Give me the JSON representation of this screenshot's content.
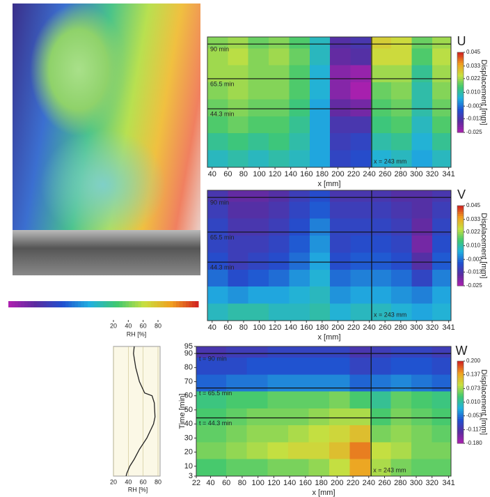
{
  "chart_data": [
    {
      "type": "heatmap",
      "title": "U",
      "xlabel": "x [mm]",
      "xlim": [
        34,
        344
      ],
      "xticks": [
        40,
        60,
        80,
        100,
        120,
        140,
        160,
        180,
        200,
        220,
        240,
        260,
        280,
        300,
        320,
        341
      ],
      "ylim": [
        3,
        95
      ],
      "xbins": [
        34,
        60,
        86,
        112,
        138,
        164,
        190,
        216,
        242,
        268,
        294,
        320,
        344
      ],
      "ybins": [
        3,
        15,
        27,
        39,
        51,
        63,
        75,
        87,
        95
      ],
      "z": [
        [
          0.008,
          0.01,
          0.008,
          0.01,
          0.008,
          0.004,
          -0.008,
          -0.006,
          0.006,
          0.008,
          0.004,
          0.008
        ],
        [
          0.012,
          0.014,
          0.012,
          0.014,
          0.01,
          0.004,
          -0.01,
          -0.008,
          0.01,
          0.012,
          0.006,
          0.012
        ],
        [
          0.016,
          0.018,
          0.016,
          0.016,
          0.012,
          0.004,
          -0.012,
          -0.012,
          0.014,
          0.016,
          0.008,
          0.016
        ],
        [
          0.018,
          0.02,
          0.018,
          0.018,
          0.014,
          0.004,
          -0.016,
          -0.018,
          0.016,
          0.018,
          0.01,
          0.018
        ],
        [
          0.02,
          0.022,
          0.02,
          0.02,
          0.016,
          0.006,
          -0.02,
          -0.024,
          0.018,
          0.02,
          0.01,
          0.02
        ],
        [
          0.022,
          0.022,
          0.02,
          0.02,
          0.016,
          0.006,
          -0.02,
          -0.022,
          0.022,
          0.022,
          0.012,
          0.022
        ],
        [
          0.022,
          0.024,
          0.02,
          0.022,
          0.018,
          0.008,
          -0.016,
          -0.014,
          0.026,
          0.026,
          0.016,
          0.024
        ],
        [
          0.02,
          0.022,
          0.018,
          0.02,
          0.016,
          0.008,
          -0.014,
          -0.012,
          0.028,
          0.026,
          0.018,
          0.022
        ]
      ],
      "clim": [
        -0.025,
        0.045
      ],
      "cticks": [
        0.045,
        0.033,
        0.022,
        {
          "value": 0.01,
          "label": "0.010"
        },
        -0.002,
        -0.013,
        -0.025
      ],
      "clabel": "Displacement [mm]",
      "colormap": [
        "#b01fb0",
        "#5a2ca0",
        "#2050d0",
        "#20b0e0",
        "#40c870",
        "#c8e040",
        "#f0a020",
        "#d02020"
      ],
      "hlines": [
        90,
        65.5,
        44.3
      ],
      "hline_labels": [
        "90 min",
        "65.5 min",
        "44.3 min"
      ],
      "vline": 243,
      "vline_label": "x = 243 mm"
    },
    {
      "type": "heatmap",
      "title": "V",
      "xlabel": "x [mm]",
      "xlim": [
        34,
        344
      ],
      "xticks": [
        40,
        60,
        80,
        100,
        120,
        140,
        160,
        180,
        200,
        220,
        240,
        260,
        280,
        300,
        320,
        341
      ],
      "ylim": [
        3,
        95
      ],
      "xbins": [
        34,
        60,
        86,
        112,
        138,
        164,
        190,
        216,
        242,
        268,
        294,
        320,
        344
      ],
      "ybins": [
        3,
        15,
        27,
        39,
        51,
        63,
        75,
        87,
        95
      ],
      "z": [
        [
          0.008,
          0.01,
          0.01,
          0.008,
          0.008,
          0.01,
          0.006,
          0.008,
          0.008,
          0.006,
          0.004,
          0.006
        ],
        [
          0.004,
          0.002,
          0.004,
          0.004,
          0.006,
          0.008,
          0.002,
          0.004,
          0.004,
          0.002,
          0.0,
          0.004
        ],
        [
          -0.002,
          -0.006,
          -0.004,
          -0.002,
          0.002,
          0.006,
          -0.002,
          0.0,
          0.0,
          -0.002,
          -0.008,
          0.0
        ],
        [
          -0.006,
          -0.01,
          -0.008,
          -0.006,
          -0.002,
          0.004,
          -0.006,
          -0.004,
          -0.004,
          -0.006,
          -0.014,
          -0.004
        ],
        [
          -0.008,
          -0.01,
          -0.01,
          -0.008,
          -0.004,
          0.002,
          -0.008,
          -0.006,
          -0.006,
          -0.008,
          -0.018,
          -0.006
        ],
        [
          -0.008,
          -0.012,
          -0.012,
          -0.01,
          -0.006,
          0.0,
          -0.008,
          -0.008,
          -0.008,
          -0.01,
          -0.016,
          -0.008
        ],
        [
          -0.01,
          -0.014,
          -0.014,
          -0.012,
          -0.008,
          -0.004,
          -0.01,
          -0.01,
          -0.01,
          -0.012,
          -0.014,
          -0.01
        ],
        [
          -0.012,
          -0.016,
          -0.016,
          -0.014,
          -0.01,
          -0.006,
          -0.012,
          -0.012,
          -0.012,
          -0.014,
          -0.014,
          -0.012
        ]
      ],
      "clim": [
        -0.025,
        0.045
      ],
      "cticks": [
        0.045,
        0.033,
        0.022,
        {
          "value": 0.01,
          "label": "0.010"
        },
        -0.002,
        -0.013,
        -0.025
      ],
      "clabel": "Displacement [mm]",
      "colormap": [
        "#b01fb0",
        "#5a2ca0",
        "#2050d0",
        "#20b0e0",
        "#40c870",
        "#c8e040",
        "#f0a020",
        "#d02020"
      ],
      "hlines": [
        90,
        65.5,
        44.3
      ],
      "hline_labels": [
        "90 min",
        "65.5 min",
        "44.3 min"
      ],
      "vline": 243,
      "vline_label": "x = 243 mm"
    },
    {
      "type": "heatmap",
      "title": "W",
      "xlabel": "x [mm]",
      "ylabel": "Time [min]",
      "xlim": [
        22,
        344
      ],
      "xticks": [
        22,
        40,
        60,
        80,
        100,
        120,
        140,
        160,
        180,
        200,
        220,
        240,
        260,
        280,
        300,
        320,
        341
      ],
      "ylim": [
        3,
        95
      ],
      "yticks": [
        3,
        10,
        20,
        30,
        40,
        50,
        60,
        70,
        80,
        90,
        95
      ],
      "xbins": [
        22,
        60,
        86,
        112,
        138,
        164,
        190,
        216,
        242,
        268,
        294,
        320,
        344
      ],
      "ybins": [
        3,
        15,
        27,
        39,
        51,
        63,
        75,
        87,
        95
      ],
      "z": [
        [
          0.04,
          0.05,
          0.05,
          0.06,
          0.06,
          0.07,
          0.09,
          0.14,
          0.08,
          0.06,
          0.05,
          0.05
        ],
        [
          0.06,
          0.07,
          0.08,
          0.09,
          0.1,
          0.1,
          0.12,
          0.16,
          0.09,
          0.08,
          0.06,
          0.06
        ],
        [
          0.05,
          0.06,
          0.07,
          0.07,
          0.08,
          0.09,
          0.1,
          0.12,
          0.06,
          0.07,
          0.06,
          0.05
        ],
        [
          0.04,
          0.05,
          0.06,
          0.06,
          0.06,
          0.07,
          0.08,
          0.08,
          0.04,
          0.06,
          0.05,
          0.04
        ],
        [
          0.03,
          0.04,
          0.04,
          0.05,
          0.05,
          0.05,
          0.06,
          0.04,
          0.02,
          0.05,
          0.04,
          0.03
        ],
        [
          -0.06,
          -0.05,
          -0.05,
          -0.04,
          -0.04,
          -0.04,
          -0.04,
          -0.06,
          -0.05,
          -0.04,
          -0.05,
          -0.06
        ],
        [
          -0.08,
          -0.08,
          -0.07,
          -0.07,
          -0.07,
          -0.07,
          -0.07,
          -0.09,
          -0.08,
          -0.07,
          -0.07,
          -0.08
        ],
        [
          -0.11,
          -0.1,
          -0.1,
          -0.09,
          -0.09,
          -0.09,
          -0.09,
          -0.11,
          -0.1,
          -0.09,
          -0.09,
          -0.1
        ]
      ],
      "clim": [
        -0.18,
        0.2
      ],
      "cticks": [
        {
          "value": 0.2,
          "label": "0.200"
        },
        0.137,
        0.073,
        {
          "value": 0.01,
          "label": "0.010"
        },
        -0.053,
        -0.117,
        {
          "value": -0.18,
          "label": "-0.180"
        }
      ],
      "clabel": "Displacement [mm]",
      "colormap": [
        "#b01fb0",
        "#5a2ca0",
        "#2050d0",
        "#20b0e0",
        "#40c870",
        "#c8e040",
        "#f0a020",
        "#d02020"
      ],
      "hlines": [
        90,
        65.5,
        44.3
      ],
      "hline_labels": [
        "t = 90 min",
        "t = 65.5 min",
        "t = 44.3 min"
      ],
      "vline": 243,
      "vline_label": "x = 243 mm"
    },
    {
      "type": "colorbar",
      "xlabel": "RH [%]",
      "xlim": [
        20,
        80
      ],
      "xticks": [
        20,
        40,
        60,
        80
      ],
      "colormap": [
        "#b01fb0",
        "#5a2ca0",
        "#2050d0",
        "#20b0e0",
        "#40c870",
        "#c8e040",
        "#f0a020",
        "#d02020"
      ]
    },
    {
      "type": "line",
      "orientation": "vertical",
      "ylabel": "RH [%]",
      "ylim": [
        20,
        80
      ],
      "yticks": [
        20,
        40,
        60,
        80
      ],
      "xlim": [
        3,
        95
      ],
      "grid": true,
      "color": "#222222",
      "x": [
        3,
        5,
        10,
        15,
        22,
        30,
        40,
        45,
        55,
        60,
        62,
        70,
        80,
        90,
        95
      ],
      "values": [
        37,
        38,
        42,
        48,
        55,
        65,
        74,
        76,
        75,
        72,
        62,
        55,
        50,
        47,
        48
      ]
    }
  ]
}
